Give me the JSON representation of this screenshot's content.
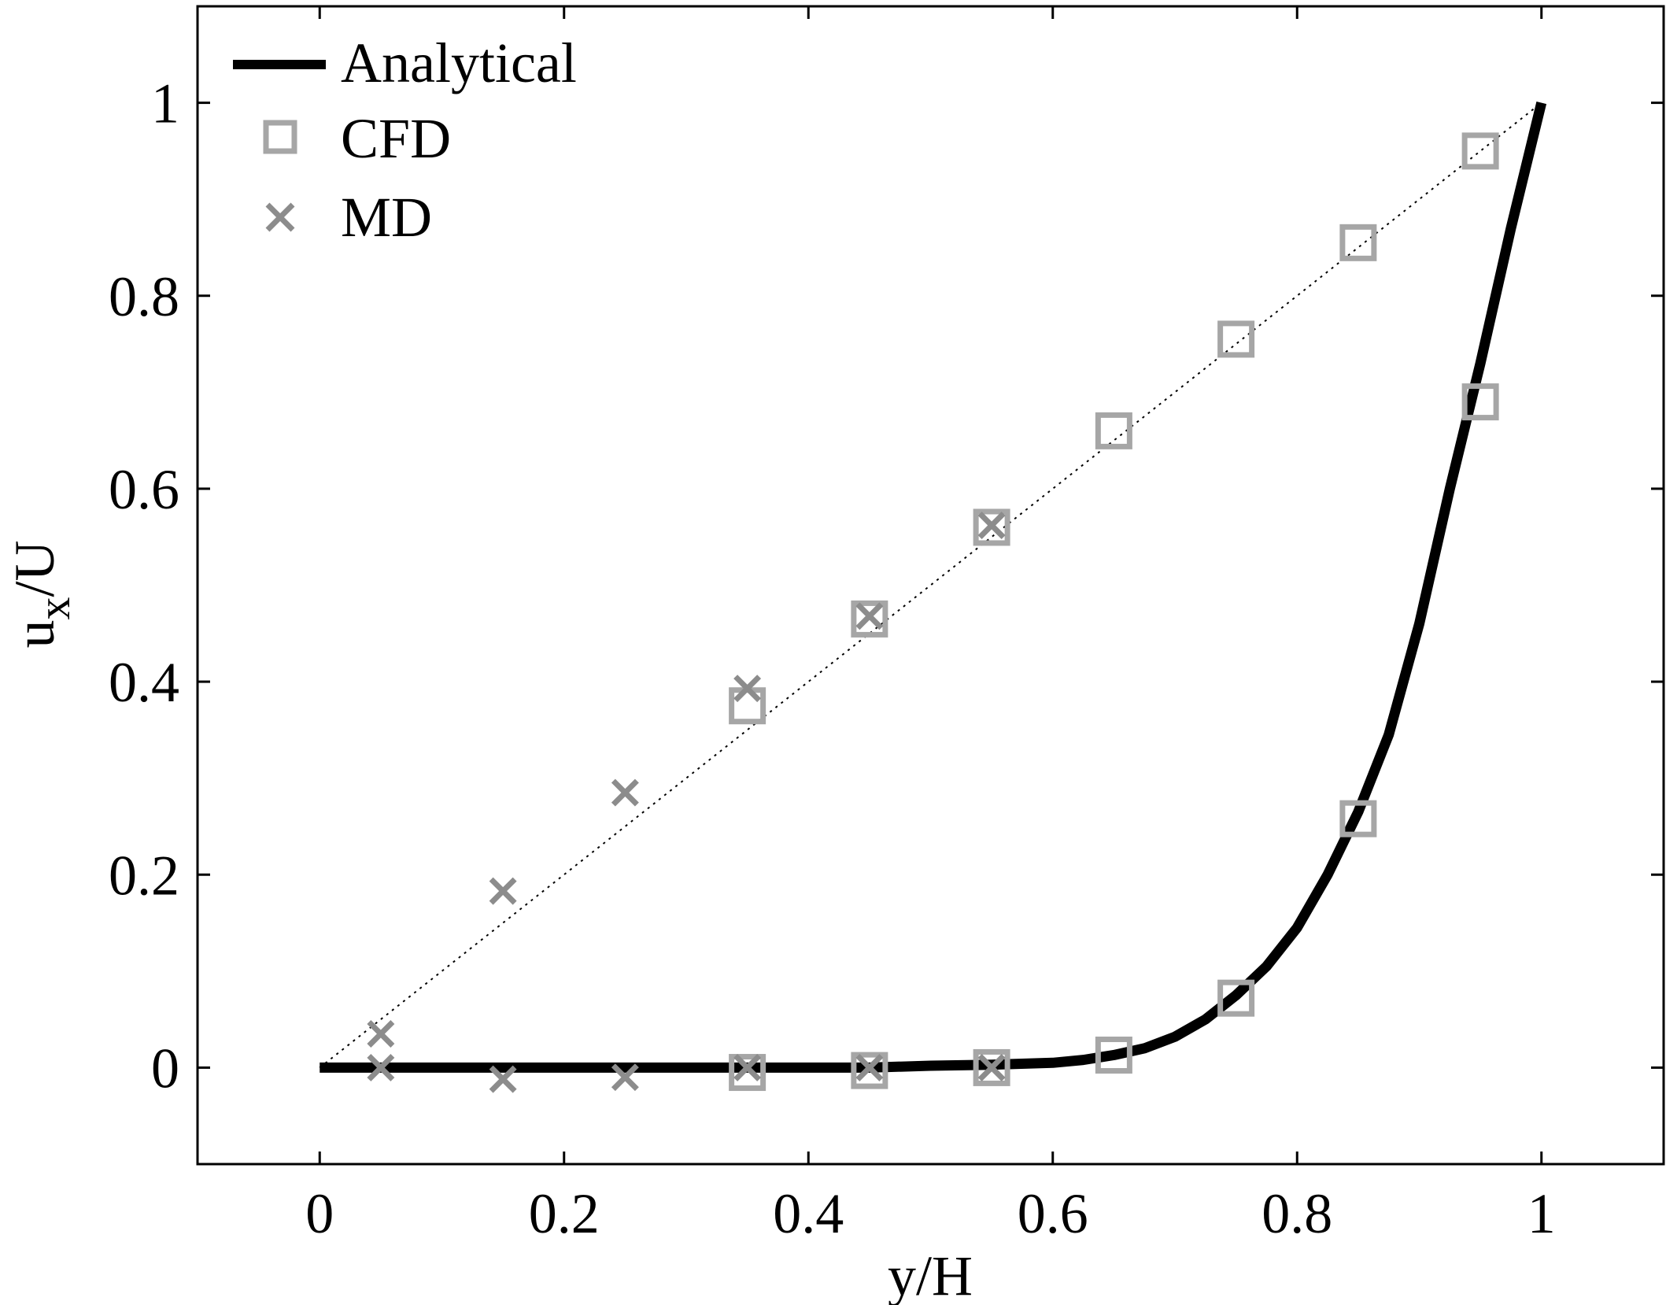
{
  "chart_data": {
    "type": "line",
    "title": "",
    "xlabel": "y/H",
    "ylabel": {
      "base": "u",
      "sub": "x",
      "rest": "/U"
    },
    "xlim": [
      -0.1,
      1.1
    ],
    "ylim": [
      -0.1,
      1.1
    ],
    "xticks": [
      0,
      0.2,
      0.4,
      0.6,
      0.8,
      1
    ],
    "xtick_labels": [
      "0",
      "0.2",
      "0.4",
      "0.6",
      "0.8",
      "1"
    ],
    "yticks": [
      0,
      0.2,
      0.4,
      0.6,
      0.8,
      1
    ],
    "ytick_labels": [
      "0",
      "0.2",
      "0.4",
      "0.6",
      "0.8",
      "1"
    ],
    "grid": false,
    "legend_position": "top-left",
    "legend": [
      {
        "label": "Analytical",
        "marker": "line"
      },
      {
        "label": "CFD",
        "marker": "square"
      },
      {
        "label": "MD",
        "marker": "x"
      }
    ],
    "series": [
      {
        "name": "Analytical",
        "style": "solid-thick",
        "color": "#000000",
        "x": [
          0,
          0.05,
          0.1,
          0.15,
          0.2,
          0.25,
          0.3,
          0.35,
          0.4,
          0.45,
          0.5,
          0.55,
          0.6,
          0.625,
          0.65,
          0.675,
          0.7,
          0.725,
          0.75,
          0.775,
          0.8,
          0.825,
          0.85,
          0.875,
          0.9,
          0.925,
          0.95,
          0.975,
          1.0
        ],
        "y": [
          0,
          0,
          0,
          0,
          0,
          0,
          0,
          0,
          0,
          0,
          0.002,
          0.003,
          0.005,
          0.008,
          0.013,
          0.02,
          0.032,
          0.05,
          0.075,
          0.105,
          0.145,
          0.2,
          0.265,
          0.345,
          0.46,
          0.6,
          0.73,
          0.87,
          1.0
        ]
      },
      {
        "name": "",
        "style": "dotted",
        "color": "#000000",
        "x": [
          0,
          1
        ],
        "y": [
          0,
          1
        ]
      },
      {
        "name": "CFD",
        "marker": "square",
        "color": "#a6a6a6",
        "x": [
          0.35,
          0.45,
          0.55,
          0.65,
          0.75,
          0.85,
          0.95,
          0.35,
          0.45,
          0.55,
          0.65,
          0.75,
          0.85,
          0.95
        ],
        "y": [
          -0.005,
          -0.003,
          0.0,
          0.013,
          0.072,
          0.258,
          0.69,
          0.375,
          0.465,
          0.56,
          0.66,
          0.755,
          0.855,
          0.95
        ]
      },
      {
        "name": "MD",
        "marker": "x",
        "color": "#8c8c8c",
        "x": [
          0.05,
          0.15,
          0.25,
          0.35,
          0.45,
          0.55,
          0.05,
          0.15,
          0.25,
          0.35,
          0.45,
          0.55
        ],
        "y": [
          0.0,
          -0.012,
          -0.01,
          0.0,
          0.0,
          0.0,
          0.035,
          0.183,
          0.285,
          0.393,
          0.468,
          0.562
        ]
      }
    ]
  }
}
